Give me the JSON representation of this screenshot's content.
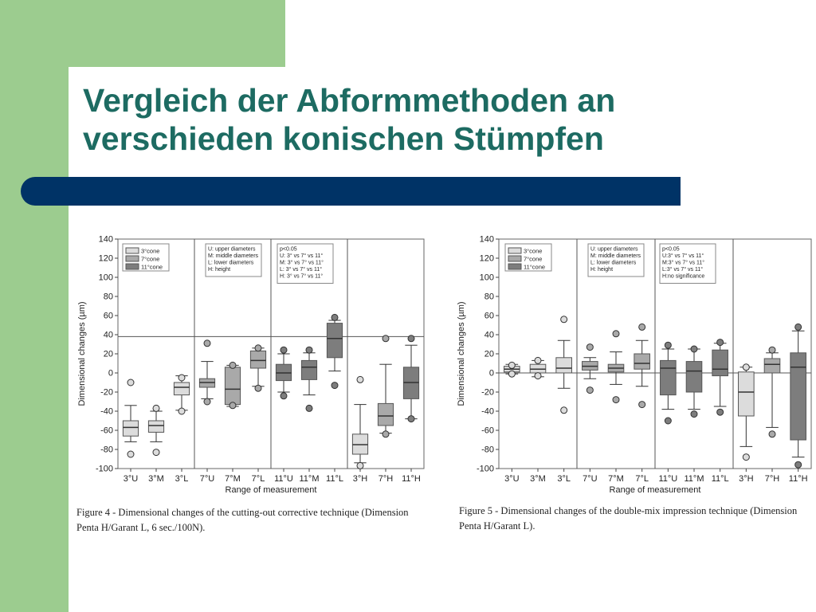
{
  "slide": {
    "title_line1": "Vergleich der Abformmethoden an",
    "title_line2": "verschieden konischen Stümpfen",
    "colors": {
      "green": "#9ccc8f",
      "title": "#1d6b62",
      "bar": "#003366"
    }
  },
  "chart_data": [
    {
      "type": "box",
      "ylabel": "Dimensional changes (µm)",
      "xlabel": "Range of measurement",
      "ylim": [
        -100,
        140
      ],
      "yticks": [
        140,
        120,
        100,
        80,
        60,
        40,
        20,
        0,
        -20,
        -40,
        -60,
        -80,
        -100
      ],
      "reference_line": 38,
      "categories": [
        "3°U",
        "3°M",
        "3°L",
        "7°U",
        "7°M",
        "7°L",
        "11°U",
        "11°M",
        "11°L",
        "3°H",
        "7°H",
        "11°H"
      ],
      "legend": {
        "position": "top-left",
        "items": [
          "3°cone",
          "7°cone",
          "11°cone"
        ]
      },
      "notes": [
        [
          "U: upper diameters",
          "M: middle diameters",
          "L: lower diameters",
          "H: height"
        ],
        [
          "p<0.05",
          "U: 3° vs 7° vs 11°",
          "M: 3° vs 7° vs 11°",
          "L: 3° vs 7° vs 11°",
          "H: 3° vs 7° vs 11°"
        ]
      ],
      "boxes": [
        {
          "category": "3°U",
          "cone": "3°cone",
          "whisker_low": -72,
          "q1": -66,
          "median": -57,
          "q3": -50,
          "whisker_high": -34,
          "outliers": [
            -85,
            -10
          ]
        },
        {
          "category": "3°M",
          "cone": "3°cone",
          "whisker_low": -72,
          "q1": -62,
          "median": -55,
          "q3": -50,
          "whisker_high": -40,
          "outliers": [
            -83,
            -37
          ]
        },
        {
          "category": "3°L",
          "cone": "3°cone",
          "whisker_low": -39,
          "q1": -23,
          "median": -15,
          "q3": -10,
          "whisker_high": -3,
          "outliers": [
            -40,
            -5
          ]
        },
        {
          "category": "7°U",
          "cone": "7°cone",
          "whisker_low": -27,
          "q1": -15,
          "median": -10,
          "q3": -6,
          "whisker_high": 12,
          "outliers": [
            -30,
            31
          ]
        },
        {
          "category": "7°M",
          "cone": "7°cone",
          "whisker_low": -35,
          "q1": -33,
          "median": -17,
          "q3": 6,
          "whisker_high": 8,
          "outliers": [
            -34,
            8
          ]
        },
        {
          "category": "7°L",
          "cone": "7°cone",
          "whisker_low": -14,
          "q1": 5,
          "median": 13,
          "q3": 23,
          "whisker_high": 26,
          "outliers": [
            -16,
            26
          ]
        },
        {
          "category": "11°U",
          "cone": "11°cone",
          "whisker_low": -20,
          "q1": -8,
          "median": 0,
          "q3": 9,
          "whisker_high": 20,
          "outliers": [
            -24,
            24
          ]
        },
        {
          "category": "11°M",
          "cone": "11°cone",
          "whisker_low": -23,
          "q1": -7,
          "median": 6,
          "q3": 13,
          "whisker_high": 21,
          "outliers": [
            -37,
            24
          ]
        },
        {
          "category": "11°L",
          "cone": "11°cone",
          "whisker_low": 2,
          "q1": 16,
          "median": 36,
          "q3": 52,
          "whisker_high": 55,
          "outliers": [
            -13,
            58
          ]
        },
        {
          "category": "3°H",
          "cone": "3°cone",
          "whisker_low": -94,
          "q1": -85,
          "median": -75,
          "q3": -64,
          "whisker_high": -33,
          "outliers": [
            -97,
            -7
          ]
        },
        {
          "category": "7°H",
          "cone": "7°cone",
          "whisker_low": -63,
          "q1": -55,
          "median": -45,
          "q3": -32,
          "whisker_high": 9,
          "outliers": [
            -64,
            36
          ]
        },
        {
          "category": "11°H",
          "cone": "11°cone",
          "whisker_low": -48,
          "q1": -27,
          "median": -10,
          "q3": 6,
          "whisker_high": 29,
          "outliers": [
            -48,
            36
          ]
        }
      ],
      "caption": "Figure 4 - Dimensional changes of the cutting-out corrective technique (Dimension Penta H/Garant L, 6 sec./100N)."
    },
    {
      "type": "box",
      "ylabel": "Dimensional changes (µm)",
      "xlabel": "Range of measurement",
      "ylim": [
        -100,
        140
      ],
      "yticks": [
        140,
        120,
        100,
        80,
        60,
        40,
        20,
        0,
        -20,
        -40,
        -60,
        -80,
        -100
      ],
      "reference_line": 0,
      "categories": [
        "3°U",
        "3°M",
        "3°L",
        "7°U",
        "7°M",
        "7°L",
        "11°U",
        "11°M",
        "11°L",
        "3°H",
        "7°H",
        "11°H"
      ],
      "legend": {
        "position": "top-left",
        "items": [
          "3°cone",
          "7°cone",
          "11°cone"
        ]
      },
      "notes": [
        [
          "U: upper diameters",
          "M: middle diameters",
          "L: lower diameters",
          "H: height"
        ],
        [
          "p<0.05",
          "U:3° vs 7° vs 11°",
          "M:3° vs 7° vs 11°",
          "L:3° vs 7° vs 11°",
          "H:no significance"
        ]
      ],
      "boxes": [
        {
          "category": "3°U",
          "cone": "3°cone",
          "whisker_low": -1,
          "q1": 1,
          "median": 4,
          "q3": 7,
          "whisker_high": 9,
          "outliers": [
            -1,
            8
          ]
        },
        {
          "category": "3°M",
          "cone": "3°cone",
          "whisker_low": -4,
          "q1": 0,
          "median": 4,
          "q3": 9,
          "whisker_high": 13,
          "outliers": [
            -3,
            13
          ]
        },
        {
          "category": "3°L",
          "cone": "3°cone",
          "whisker_low": -16,
          "q1": 0,
          "median": 5,
          "q3": 16,
          "whisker_high": 34,
          "outliers": [
            -39,
            56
          ]
        },
        {
          "category": "7°U",
          "cone": "7°cone",
          "whisker_low": -6,
          "q1": 3,
          "median": 7,
          "q3": 12,
          "whisker_high": 16,
          "outliers": [
            -18,
            27
          ]
        },
        {
          "category": "7°M",
          "cone": "7°cone",
          "whisker_low": -12,
          "q1": 1,
          "median": 5,
          "q3": 9,
          "whisker_high": 22,
          "outliers": [
            -28,
            41
          ]
        },
        {
          "category": "7°L",
          "cone": "7°cone",
          "whisker_low": -14,
          "q1": 4,
          "median": 10,
          "q3": 20,
          "whisker_high": 34,
          "outliers": [
            -33,
            48
          ]
        },
        {
          "category": "11°U",
          "cone": "11°cone",
          "whisker_low": -38,
          "q1": -23,
          "median": 5,
          "q3": 13,
          "whisker_high": 25,
          "outliers": [
            -50,
            29
          ]
        },
        {
          "category": "11°M",
          "cone": "11°cone",
          "whisker_low": -38,
          "q1": -20,
          "median": 2,
          "q3": 12,
          "whisker_high": 25,
          "outliers": [
            -43,
            25
          ]
        },
        {
          "category": "11°L",
          "cone": "11°cone",
          "whisker_low": -35,
          "q1": -3,
          "median": 4,
          "q3": 24,
          "whisker_high": 31,
          "outliers": [
            -41,
            32
          ]
        },
        {
          "category": "3°H",
          "cone": "3°cone",
          "whisker_low": -77,
          "q1": -45,
          "median": -20,
          "q3": 1,
          "whisker_high": 6,
          "outliers": [
            -88,
            6
          ]
        },
        {
          "category": "7°H",
          "cone": "7°cone",
          "whisker_low": -57,
          "q1": 0,
          "median": 9,
          "q3": 15,
          "whisker_high": 21,
          "outliers": [
            -64,
            24
          ]
        },
        {
          "category": "11°H",
          "cone": "11°cone",
          "whisker_low": -88,
          "q1": -70,
          "median": 6,
          "q3": 21,
          "whisker_high": 44,
          "outliers": [
            -96,
            48
          ]
        }
      ],
      "caption": "Figure 5 - Dimensional changes of the double-mix impression technique (Dimension Penta H/Garant L)."
    }
  ]
}
